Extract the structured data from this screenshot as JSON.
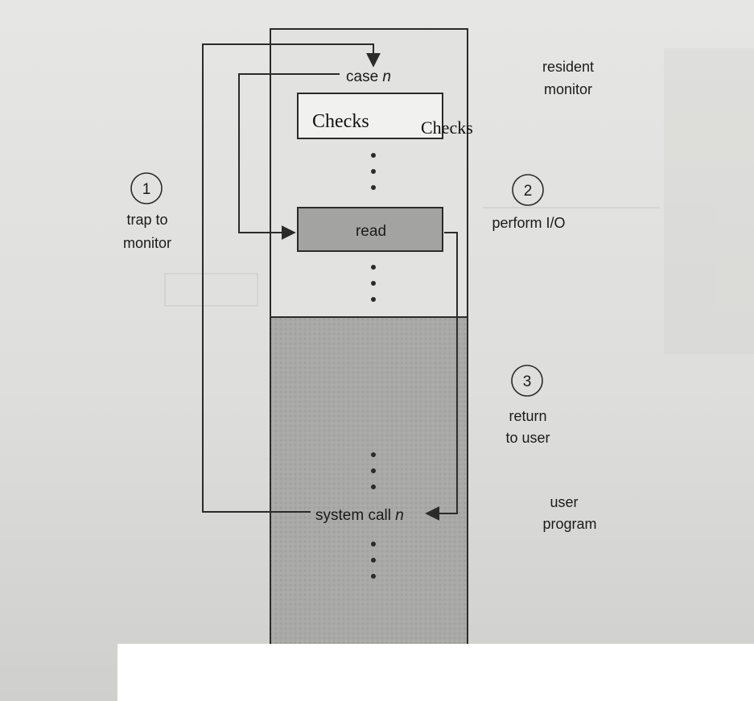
{
  "diagram": {
    "labels": {
      "case_n_prefix": "case ",
      "case_n_var": "n",
      "checks_box": "Checks",
      "checks_side": "Checks",
      "read": "read",
      "system_call_prefix": "system call ",
      "system_call_var": "n",
      "resident_monitor_line1": "resident",
      "resident_monitor_line2": "monitor",
      "user_program_line1": "user",
      "user_program_line2": "program"
    },
    "steps": [
      {
        "number": "1",
        "line1": "trap to",
        "line2": "monitor"
      },
      {
        "number": "2",
        "line1": "perform I/O",
        "line2": ""
      },
      {
        "number": "3",
        "line1": "return",
        "line2": "to user"
      }
    ],
    "colors": {
      "ink": "#2b2b2b",
      "resident_fill": "#e2e2e0",
      "user_fill": "#a9a9a7",
      "read_fill": "#a3a3a1",
      "paper": "#e4e4e2"
    }
  }
}
